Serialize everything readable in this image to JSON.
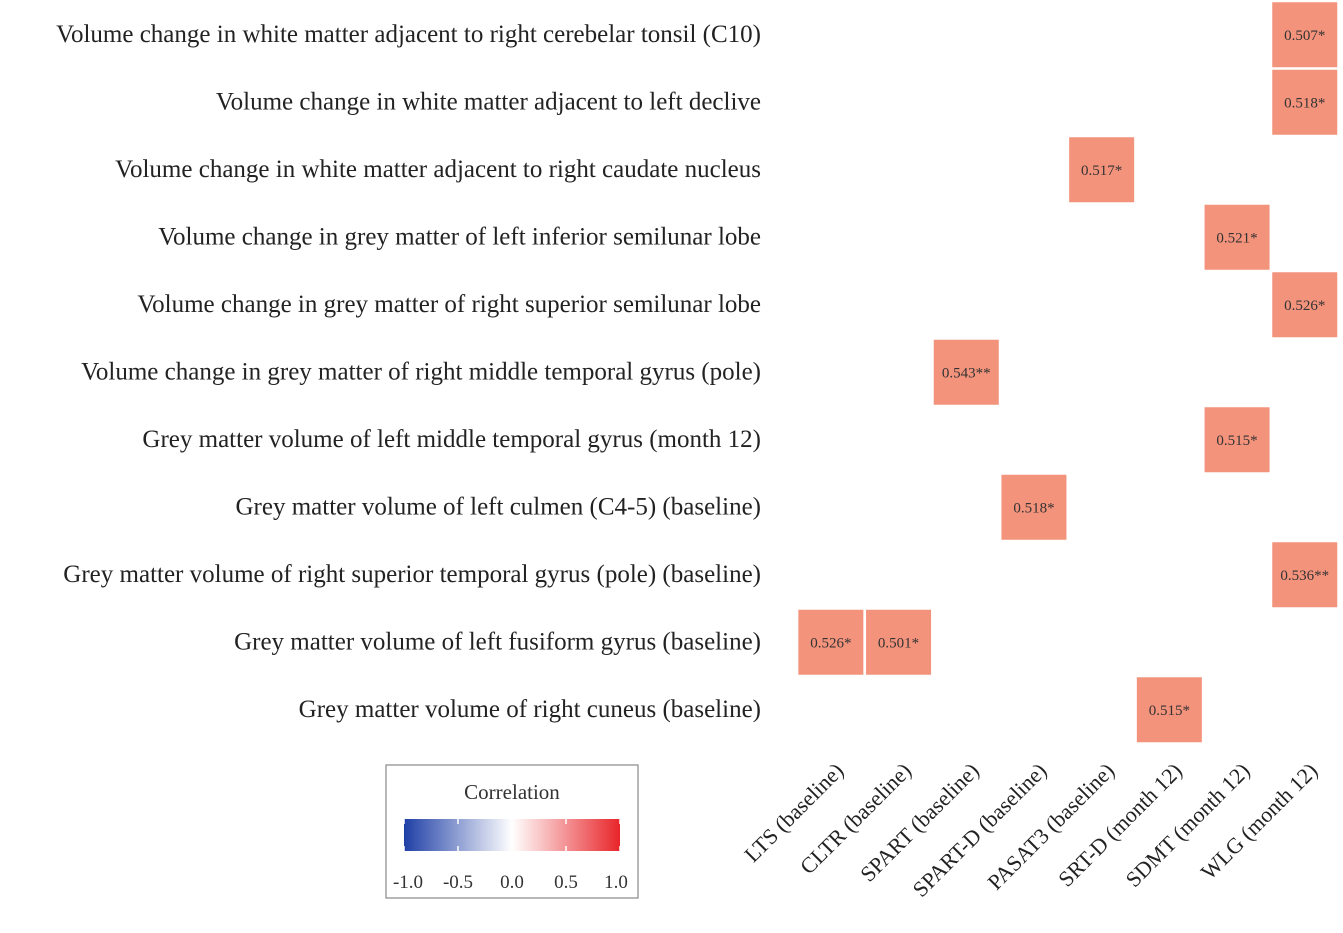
{
  "chart_data": {
    "type": "heatmap",
    "rows": [
      "Volume change in white matter adjacent to right cerebelar tonsil (C10)",
      "Volume change in white matter adjacent to left declive",
      "Volume change in white matter adjacent to right caudate nucleus",
      "Volume change in grey matter of left inferior  semilunar  lobe",
      "Volume change in grey matter of right superior semilunar lobe",
      "Volume change in grey matter of right middle  temporal gyrus (pole)",
      "Grey matter volume of left middle temporal gyrus (month 12)",
      "Grey matter volume of left culmen (C4-5) (baseline)",
      "Grey matter volume of right superior temporal gyrus (pole) (baseline)",
      "Grey matter volume of left fusiform gyrus (baseline)",
      "Grey matter volume of right cuneus (baseline)"
    ],
    "columns": [
      "LTS (baseline)",
      "CLTR (baseline)",
      "SPART (baseline)",
      "SPART-D (baseline)",
      "PASAT3 (baseline)",
      "SRT-D (month 12)",
      "SDMT (month 12)",
      "WLG (month 12)"
    ],
    "cells": [
      {
        "row": 0,
        "col": 7,
        "value": 0.507,
        "label": "0.507*"
      },
      {
        "row": 1,
        "col": 7,
        "value": 0.518,
        "label": "0.518*"
      },
      {
        "row": 2,
        "col": 4,
        "value": 0.517,
        "label": "0.517*"
      },
      {
        "row": 3,
        "col": 6,
        "value": 0.521,
        "label": "0.521*"
      },
      {
        "row": 4,
        "col": 7,
        "value": 0.526,
        "label": "0.526*"
      },
      {
        "row": 5,
        "col": 2,
        "value": 0.543,
        "label": "0.543**"
      },
      {
        "row": 6,
        "col": 6,
        "value": 0.515,
        "label": "0.515*"
      },
      {
        "row": 7,
        "col": 3,
        "value": 0.518,
        "label": "0.518*"
      },
      {
        "row": 8,
        "col": 7,
        "value": 0.536,
        "label": "0.536**"
      },
      {
        "row": 9,
        "col": 0,
        "value": 0.526,
        "label": "0.526*"
      },
      {
        "row": 9,
        "col": 1,
        "value": 0.501,
        "label": "0.501*"
      },
      {
        "row": 10,
        "col": 5,
        "value": 0.515,
        "label": "0.515*"
      }
    ],
    "colorscale": {
      "range": [
        -1.0,
        1.0
      ],
      "colors": [
        "#1f3fa6",
        "#ffffff",
        "#e8252a"
      ],
      "cell_color": "#f4937c"
    },
    "legend": {
      "title": "Correlation",
      "ticks": [
        "-1.0",
        "-0.5",
        "0.0",
        "0.5",
        "1.0"
      ],
      "placement": "bottom-left"
    }
  }
}
